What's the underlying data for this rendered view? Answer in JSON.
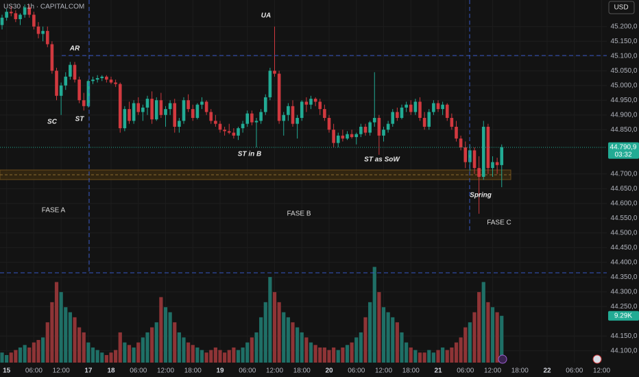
{
  "chart_data": {
    "type": "candlestick",
    "title": "US30 · 1h · CAPITALCOM",
    "currency": "USD",
    "countdown": "03:32",
    "up_color": "#22ab94",
    "down_color": "#d1393f",
    "volume_up_color": "#1f6f66",
    "volume_down_color": "#8e3436",
    "grid": true,
    "categories": [
      null,
      "15",
      null,
      null,
      null,
      null,
      null,
      "06:00",
      null,
      null,
      null,
      null,
      null,
      "12:00",
      null,
      null,
      null,
      null,
      null,
      "17",
      null,
      null,
      null,
      null,
      "18",
      null,
      null,
      null,
      null,
      null,
      "06:00",
      null,
      null,
      null,
      null,
      null,
      "12:00",
      null,
      null,
      null,
      null,
      null,
      "18:00",
      null,
      null,
      null,
      null,
      null,
      "19",
      null,
      null,
      null,
      null,
      null,
      "06:00",
      null,
      null,
      null,
      null,
      null,
      "12:00",
      null,
      null,
      null,
      null,
      null,
      "18:00",
      null,
      null,
      null,
      null,
      null,
      "20",
      null,
      null,
      null,
      null,
      null,
      "06:00",
      null,
      null,
      null,
      null,
      null,
      "12:00",
      null,
      null,
      null,
      null,
      null,
      "18:00",
      null,
      null,
      null,
      null,
      null,
      "21",
      null,
      null,
      null,
      null,
      null,
      "06:00",
      null,
      null,
      null,
      null,
      null,
      "12:00",
      null,
      null,
      null,
      null,
      null,
      "18:00",
      null,
      null,
      null,
      null,
      null,
      "22",
      null,
      null,
      null,
      null,
      null,
      "06:00",
      null,
      null,
      null,
      null,
      null,
      "12:00"
    ],
    "open": [
      45205,
      45230,
      45250,
      45245,
      45225,
      45240,
      45265,
      45240,
      45200,
      45175,
      45185,
      45140,
      45050,
      44965,
      45000,
      45030,
      45070,
      45020,
      44950,
      44930,
      45015,
      45020,
      45025,
      45030,
      45020,
      45010,
      45005,
      44855,
      44920,
      44880,
      44940,
      44910,
      44925,
      44955,
      44885,
      44950,
      44900,
      44920,
      44940,
      44860,
      44880,
      44950,
      44920,
      44890,
      44935,
      44945,
      44910,
      44880,
      44870,
      44850,
      44845,
      44840,
      44830,
      44855,
      44870,
      44905,
      44875,
      44880,
      44910,
      44960,
      45050,
      45040,
      44880,
      44900,
      44930,
      44870,
      44890,
      44945,
      44935,
      44955,
      44945,
      44920,
      44890,
      44850,
      44805,
      44830,
      44820,
      44835,
      44825,
      44835,
      44860,
      44840,
      44875,
      44890,
      44830,
      44850,
      44870,
      44910,
      44890,
      44925,
      44935,
      44910,
      44945,
      44890,
      44860,
      44910,
      44940,
      44920,
      44935,
      44890,
      44860,
      44820,
      44790,
      44740,
      44780,
      44720,
      44690,
      44860,
      44720,
      44740,
      44730,
      null,
      null,
      null,
      null,
      null,
      null,
      null,
      null,
      null,
      null,
      null,
      null,
      null,
      null,
      null,
      null,
      null,
      null,
      null,
      null,
      null,
      null
    ],
    "high": [
      45240,
      45260,
      45270,
      45255,
      45245,
      45275,
      45275,
      45250,
      45215,
      45200,
      45200,
      45150,
      45060,
      45010,
      45045,
      45080,
      45080,
      45030,
      44975,
      45020,
      45030,
      45035,
      45035,
      45035,
      45030,
      45020,
      45010,
      44930,
      44945,
      44950,
      44960,
      44935,
      44965,
      44980,
      44960,
      44975,
      44930,
      44950,
      44955,
      44890,
      44960,
      44970,
      44935,
      44940,
      44960,
      44950,
      44920,
      44900,
      44880,
      44860,
      44870,
      44855,
      44860,
      44880,
      44915,
      44915,
      44890,
      44920,
      44970,
      45060,
      45200,
      45050,
      44910,
      44940,
      44950,
      44900,
      44950,
      44960,
      44965,
      44960,
      44955,
      44935,
      44900,
      44870,
      44840,
      44850,
      44845,
      44850,
      44840,
      44870,
      44870,
      44880,
      45045,
      44900,
      44860,
      44880,
      44920,
      44925,
      44935,
      44945,
      44950,
      44955,
      44960,
      44910,
      44920,
      44950,
      44950,
      44945,
      44940,
      44905,
      44880,
      44830,
      44810,
      44800,
      44790,
      44760,
      44880,
      44870,
      44760,
      44755,
      44800,
      null,
      null,
      null,
      null,
      null,
      null,
      null,
      null,
      null,
      null,
      null,
      null,
      null,
      null,
      null,
      null,
      null,
      null,
      null,
      null,
      null,
      null
    ],
    "low": [
      45190,
      45220,
      45235,
      45215,
      45205,
      45230,
      45230,
      45190,
      45160,
      45150,
      45130,
      45040,
      44950,
      44900,
      44985,
      45020,
      45010,
      44940,
      44915,
      44925,
      45005,
      45010,
      45015,
      45010,
      45005,
      44995,
      44840,
      44845,
      44870,
      44870,
      44900,
      44880,
      44900,
      44870,
      44880,
      44890,
      44860,
      44900,
      44840,
      44840,
      44870,
      44910,
      44880,
      44885,
      44920,
      44900,
      44870,
      44860,
      44840,
      44830,
      44835,
      44820,
      44815,
      44840,
      44860,
      44865,
      44790,
      44870,
      44900,
      44950,
      45030,
      44870,
      44830,
      44880,
      44860,
      44820,
      44880,
      44910,
      44920,
      44930,
      44900,
      44880,
      44840,
      44790,
      44790,
      44810,
      44815,
      44820,
      44800,
      44825,
      44830,
      44830,
      44860,
      44765,
      44810,
      44840,
      44860,
      44880,
      44885,
      44910,
      44900,
      44900,
      44880,
      44850,
      44850,
      44900,
      44910,
      44900,
      44880,
      44850,
      44810,
      44780,
      44720,
      44710,
      44700,
      44565,
      44680,
      44700,
      44690,
      44700,
      44655,
      null,
      null,
      null,
      null,
      null,
      null,
      null,
      null,
      null,
      null,
      null,
      null,
      null,
      null,
      null,
      null,
      null,
      null,
      null,
      null,
      null,
      null
    ],
    "close": [
      45230,
      45250,
      45245,
      45225,
      45240,
      45265,
      45240,
      45200,
      45175,
      45185,
      45140,
      45050,
      44965,
      45000,
      45030,
      45070,
      45020,
      44950,
      44930,
      45015,
      45020,
      45025,
      45030,
      45020,
      45010,
      45005,
      44855,
      44920,
      44880,
      44940,
      44910,
      44925,
      44955,
      44885,
      44950,
      44900,
      44920,
      44940,
      44860,
      44880,
      44950,
      44920,
      44890,
      44935,
      44945,
      44910,
      44880,
      44870,
      44850,
      44845,
      44840,
      44830,
      44855,
      44870,
      44905,
      44875,
      44880,
      44910,
      44960,
      45050,
      45040,
      44880,
      44900,
      44930,
      44870,
      44890,
      44945,
      44935,
      44955,
      44945,
      44920,
      44890,
      44850,
      44805,
      44830,
      44820,
      44835,
      44825,
      44835,
      44860,
      44840,
      44875,
      44890,
      44830,
      44850,
      44870,
      44910,
      44890,
      44925,
      44935,
      44910,
      44945,
      44890,
      44860,
      44910,
      44940,
      44920,
      44935,
      44890,
      44860,
      44820,
      44790,
      44740,
      44780,
      44720,
      44690,
      44860,
      44720,
      44740,
      44730,
      44790.9,
      null,
      null,
      null,
      null,
      null,
      null,
      null,
      null,
      null,
      null,
      null,
      null,
      null,
      null,
      null,
      null,
      null,
      null,
      null,
      null,
      null,
      null
    ],
    "value_labels": [
      null,
      null,
      null,
      null,
      null,
      null,
      null,
      null,
      null,
      null,
      null,
      null,
      null,
      null,
      null,
      null,
      null,
      null,
      null,
      null,
      null,
      null,
      null,
      null,
      null,
      null,
      null,
      null,
      null,
      null,
      null,
      null,
      null,
      null,
      null,
      null,
      null,
      null,
      null,
      null,
      null,
      null,
      null,
      null,
      null,
      null,
      null,
      null,
      null,
      null,
      null,
      null,
      null,
      null,
      null,
      null,
      null,
      null,
      null,
      null,
      null,
      null,
      null,
      null,
      null,
      null,
      null,
      null,
      null,
      null,
      null,
      null,
      null,
      null,
      null,
      null,
      null,
      null,
      null,
      null,
      null,
      null,
      null,
      null,
      null,
      null,
      null,
      null,
      null,
      null,
      null,
      null,
      null,
      null,
      null,
      null,
      null,
      null,
      null,
      null,
      null,
      null,
      null,
      null,
      null,
      null,
      null,
      null,
      null,
      null,
      "44.790,9",
      null,
      null,
      null,
      null,
      null,
      null,
      null,
      null,
      null,
      null,
      null,
      null,
      null,
      null,
      null,
      null,
      null,
      null,
      null,
      null,
      null,
      null
    ],
    "volume": {
      "values": [
        2,
        1.5,
        2,
        2.5,
        3,
        3.5,
        3,
        4,
        4.5,
        5,
        8,
        12,
        16,
        14,
        11,
        10,
        9,
        7,
        6,
        4,
        3,
        2.5,
        2,
        1.5,
        2,
        2.5,
        6,
        4,
        3.5,
        3,
        4,
        5,
        6,
        7,
        8,
        13,
        11,
        10,
        8,
        6,
        5,
        4,
        3.5,
        3,
        2.5,
        2,
        2.5,
        3,
        2.5,
        2,
        2.5,
        3,
        2.5,
        3,
        4,
        5,
        6,
        9,
        12,
        17,
        14,
        12,
        10,
        9,
        8,
        7,
        6,
        5,
        4,
        3.5,
        3,
        3,
        2.5,
        3,
        2.5,
        3,
        3.5,
        4,
        5,
        6,
        9,
        12,
        19,
        14,
        11,
        10,
        9,
        8,
        6,
        4,
        3,
        2.5,
        2,
        2,
        2.5,
        2,
        2.5,
        3,
        2.5,
        3,
        4,
        5,
        7,
        8,
        10,
        14,
        16,
        12,
        11,
        10,
        9.29,
        null,
        null,
        null,
        null,
        null,
        null,
        null,
        null,
        null,
        null,
        null,
        null,
        null,
        null,
        null,
        null,
        null,
        null,
        null,
        null,
        null,
        null
      ],
      "value_labels": [
        null,
        null,
        null,
        null,
        null,
        null,
        null,
        null,
        null,
        null,
        null,
        null,
        null,
        null,
        null,
        null,
        null,
        null,
        null,
        null,
        null,
        null,
        null,
        null,
        null,
        null,
        null,
        null,
        null,
        null,
        null,
        null,
        null,
        null,
        null,
        null,
        null,
        null,
        null,
        null,
        null,
        null,
        null,
        null,
        null,
        null,
        null,
        null,
        null,
        null,
        null,
        null,
        null,
        null,
        null,
        null,
        null,
        null,
        null,
        null,
        null,
        null,
        null,
        null,
        null,
        null,
        null,
        null,
        null,
        null,
        null,
        null,
        null,
        null,
        null,
        null,
        null,
        null,
        null,
        null,
        null,
        null,
        null,
        null,
        null,
        null,
        null,
        null,
        null,
        null,
        null,
        null,
        null,
        null,
        null,
        null,
        null,
        null,
        null,
        null,
        null,
        null,
        null,
        null,
        null,
        null,
        null,
        null,
        null,
        null,
        "9.29K",
        null,
        null,
        null,
        null,
        null,
        null,
        null,
        null,
        null,
        null,
        null,
        null,
        null,
        null,
        null,
        null,
        null,
        null,
        null,
        null,
        null,
        null
      ],
      "y2lim": [
        0,
        72
      ]
    },
    "ylim": [
      44060,
      45290
    ],
    "yticks": [
      {
        "value": 44100,
        "label": "44.100,0"
      },
      {
        "value": 44150,
        "label": "44.150,0"
      },
      {
        "value": 44250,
        "label": "44.250,0"
      },
      {
        "value": 44300,
        "label": "44.300,0"
      },
      {
        "value": 44350,
        "label": "44.350,0"
      },
      {
        "value": 44400,
        "label": "44.400,0"
      },
      {
        "value": 44450,
        "label": "44.450,0"
      },
      {
        "value": 44500,
        "label": "44.500,0"
      },
      {
        "value": 44550,
        "label": "44.550,0"
      },
      {
        "value": 44600,
        "label": "44.600,0"
      },
      {
        "value": 44650,
        "label": "44.650,0"
      },
      {
        "value": 44700,
        "label": "44.700,0"
      },
      {
        "value": 44850,
        "label": "44.850,0"
      },
      {
        "value": 44900,
        "label": "44.900,0"
      },
      {
        "value": 44950,
        "label": "44.950,0"
      },
      {
        "value": 45000,
        "label": "45.000,0"
      },
      {
        "value": 45050,
        "label": "45.050,0"
      },
      {
        "value": 45100,
        "label": "45.100,0"
      },
      {
        "value": 45150,
        "label": "45.150,0"
      },
      {
        "value": 45200,
        "label": "45.200,0"
      }
    ],
    "annotations": [
      "SC",
      "ST",
      "AR",
      "UA",
      "ST in B",
      "ST as SoW",
      "Spring",
      "FASE A",
      "FASE B",
      "FASE C"
    ]
  }
}
